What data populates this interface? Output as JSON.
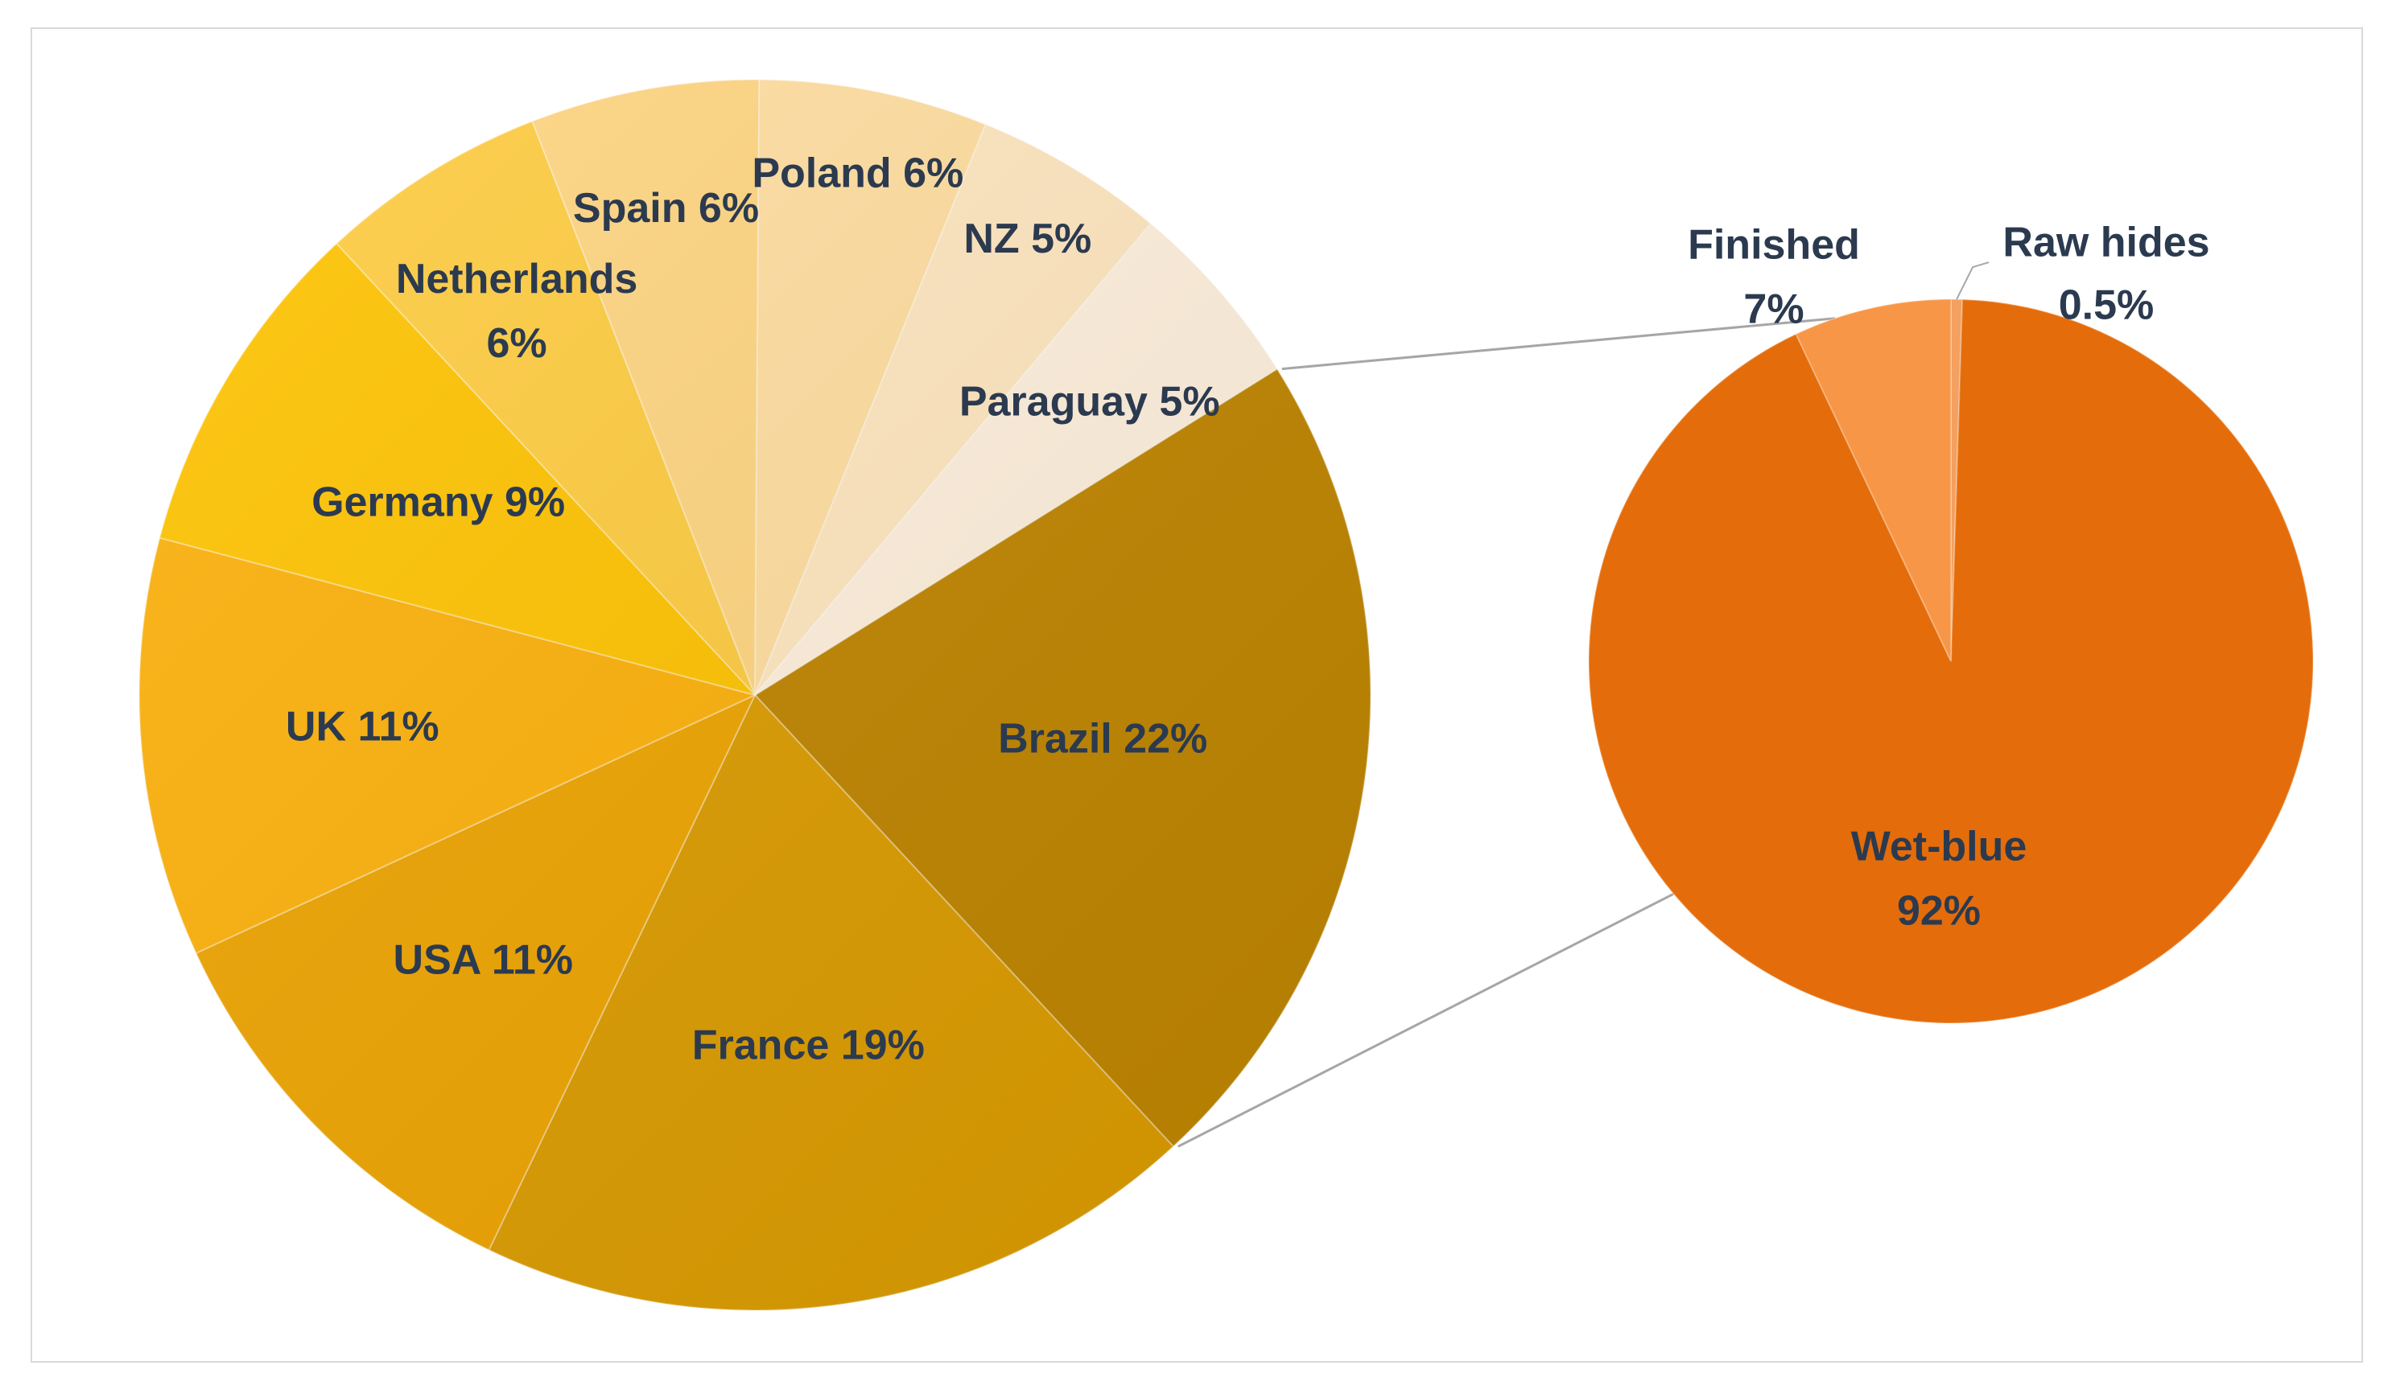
{
  "chart_data": [
    {
      "type": "pie",
      "title": "",
      "series": [
        {
          "categories": [
            "Brazil",
            "France",
            "USA",
            "UK",
            "Germany",
            "Netherlands",
            "Spain",
            "Poland",
            "NZ",
            "Paraguay"
          ],
          "values": [
            22,
            19,
            11,
            11,
            9,
            6,
            6,
            6,
            5,
            5
          ],
          "labels": [
            "Brazil 22%",
            "France 19%",
            "USA 11%",
            "UK 11%",
            "Germany 9%",
            "Netherlands\n6%",
            "Spain 6%",
            "Poland 6%",
            "NZ 5%",
            "Paraguay 5%"
          ],
          "colors": [
            "#bf8500",
            "#dc9c00",
            "#eea400",
            "#fdb10a",
            "#ffc300",
            "#ffcc40",
            "#ffd580",
            "#ffdea0",
            "#ffe6bf",
            "#fff0dc"
          ]
        }
      ],
      "legend": "none",
      "data_labels": "inside"
    },
    {
      "type": "pie",
      "title": "",
      "series": [
        {
          "categories": [
            "Raw hides",
            "Wet-blue",
            "Finished"
          ],
          "values": [
            0.5,
            92,
            7
          ],
          "labels": [
            "Raw hides\n0.5%",
            "Wet-blue\n92%",
            "Finished\n7%"
          ],
          "colors": [
            "#f4a060",
            "#e46c0a",
            "#f79646"
          ]
        }
      ],
      "legend": "none",
      "data_labels": "mixed"
    }
  ]
}
